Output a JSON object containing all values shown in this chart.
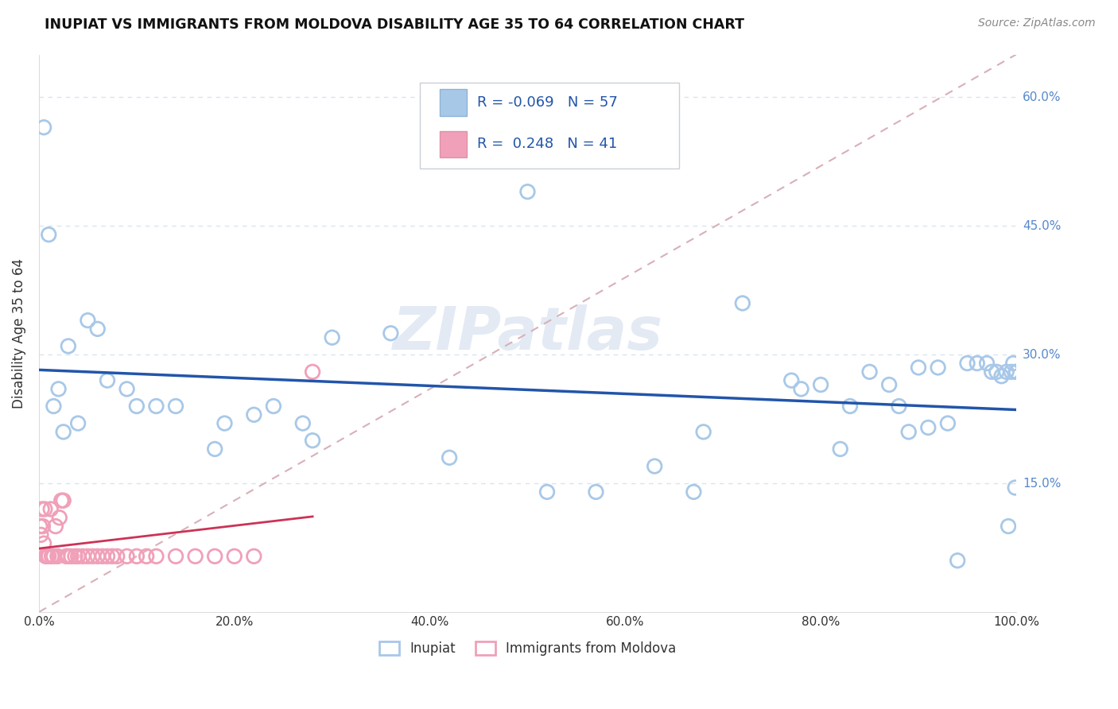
{
  "title": "INUPIAT VS IMMIGRANTS FROM MOLDOVA DISABILITY AGE 35 TO 64 CORRELATION CHART",
  "source": "Source: ZipAtlas.com",
  "ylabel": "Disability Age 35 to 64",
  "legend_label_1": "Inupiat",
  "legend_label_2": "Immigrants from Moldova",
  "R1": -0.069,
  "N1": 57,
  "R2": 0.248,
  "N2": 41,
  "color1": "#a8c8e8",
  "color2": "#f0a0b8",
  "line1_color": "#2255aa",
  "line2_color": "#cc3355",
  "diag_color": "#d8b0b8",
  "watermark": "ZIPatlas",
  "inupiat_x": [
    0.005,
    0.01,
    0.015,
    0.02,
    0.025,
    0.03,
    0.04,
    0.05,
    0.06,
    0.07,
    0.09,
    0.1,
    0.12,
    0.14,
    0.18,
    0.19,
    0.22,
    0.24,
    0.27,
    0.28,
    0.3,
    0.36,
    0.42,
    0.5,
    0.52,
    0.57,
    0.63,
    0.67,
    0.68,
    0.72,
    0.77,
    0.78,
    0.8,
    0.82,
    0.83,
    0.85,
    0.87,
    0.88,
    0.89,
    0.9,
    0.91,
    0.92,
    0.93,
    0.94,
    0.95,
    0.96,
    0.97,
    0.975,
    0.98,
    0.985,
    0.99,
    0.992,
    0.995,
    0.997,
    0.999,
    1.0,
    1.0
  ],
  "inupiat_y": [
    0.565,
    0.44,
    0.24,
    0.26,
    0.21,
    0.31,
    0.22,
    0.34,
    0.33,
    0.27,
    0.26,
    0.24,
    0.24,
    0.24,
    0.19,
    0.22,
    0.23,
    0.24,
    0.22,
    0.2,
    0.32,
    0.325,
    0.18,
    0.49,
    0.14,
    0.14,
    0.17,
    0.14,
    0.21,
    0.36,
    0.27,
    0.26,
    0.265,
    0.19,
    0.24,
    0.28,
    0.265,
    0.24,
    0.21,
    0.285,
    0.215,
    0.285,
    0.22,
    0.06,
    0.29,
    0.29,
    0.29,
    0.28,
    0.28,
    0.275,
    0.28,
    0.1,
    0.28,
    0.29,
    0.145,
    0.28,
    0.28
  ],
  "moldova_x": [
    0.001,
    0.002,
    0.003,
    0.004,
    0.005,
    0.006,
    0.007,
    0.008,
    0.009,
    0.01,
    0.012,
    0.013,
    0.015,
    0.017,
    0.019,
    0.021,
    0.023,
    0.025,
    0.028,
    0.03,
    0.033,
    0.037,
    0.04,
    0.045,
    0.05,
    0.055,
    0.06,
    0.065,
    0.07,
    0.075,
    0.08,
    0.09,
    0.1,
    0.11,
    0.12,
    0.14,
    0.16,
    0.18,
    0.2,
    0.22,
    0.28
  ],
  "moldova_y": [
    0.1,
    0.09,
    0.12,
    0.1,
    0.08,
    0.12,
    0.065,
    0.065,
    0.065,
    0.065,
    0.12,
    0.065,
    0.065,
    0.1,
    0.065,
    0.11,
    0.13,
    0.13,
    0.065,
    0.065,
    0.065,
    0.065,
    0.065,
    0.065,
    0.065,
    0.065,
    0.065,
    0.065,
    0.065,
    0.065,
    0.065,
    0.065,
    0.065,
    0.065,
    0.065,
    0.065,
    0.065,
    0.065,
    0.065,
    0.065,
    0.28
  ],
  "xlim": [
    0.0,
    1.0
  ],
  "ylim": [
    0.0,
    0.65
  ],
  "yticks": [
    0.15,
    0.3,
    0.45,
    0.6
  ],
  "ytick_labels": [
    "15.0%",
    "30.0%",
    "45.0%",
    "60.0%"
  ],
  "xtick_labels": [
    "0.0%",
    "20.0%",
    "40.0%",
    "60.0%",
    "80.0%",
    "100.0%"
  ],
  "xticks": [
    0.0,
    0.2,
    0.4,
    0.6,
    0.8,
    1.0
  ],
  "grid_color": "#d8e4f0",
  "ytick_color": "#5588cc",
  "background_color": "#ffffff"
}
